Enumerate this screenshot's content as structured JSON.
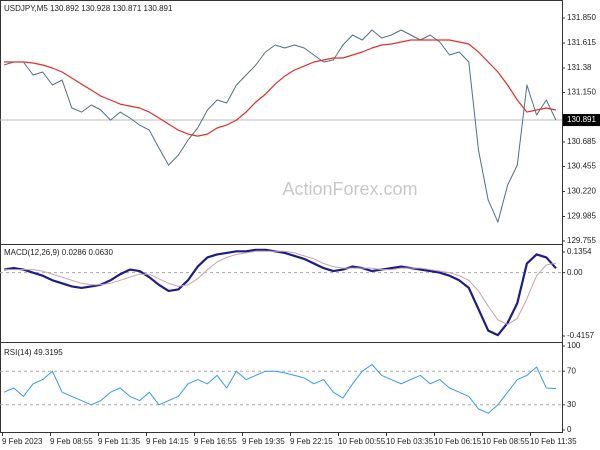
{
  "chart_data": [
    {
      "type": "line",
      "title": "USDJPY,M5  130.892 130.928 130.871 130.891",
      "watermark": "ActionForex.com",
      "ylim": [
        129.736,
        132.0
      ],
      "yticks": [
        {
          "value": 131.85,
          "label": "131.850"
        },
        131.615,
        131.38,
        {
          "value": 131.15,
          "label": "131.150"
        },
        130.685,
        130.455,
        {
          "value": 130.22,
          "label": "130.220"
        },
        129.985,
        129.755
      ],
      "last_price": 130.891,
      "series": [
        {
          "color": "#4f6f8c",
          "values": [
            131.408,
            131.436,
            131.436,
            131.314,
            131.342,
            131.22,
            131.267,
            131.004,
            130.966,
            131.032,
            130.985,
            130.891,
            130.966,
            130.91,
            130.844,
            130.797,
            130.628,
            130.468,
            130.562,
            130.703,
            130.816,
            130.985,
            131.079,
            131.051,
            131.22,
            131.314,
            131.408,
            131.53,
            131.596,
            131.568,
            131.596,
            131.568,
            131.502,
            131.436,
            131.455,
            131.596,
            131.69,
            131.643,
            131.737,
            131.662,
            131.69,
            131.737,
            131.69,
            131.643,
            131.69,
            131.624,
            131.502,
            131.53,
            131.436,
            130.609,
            130.139,
            129.932,
            130.28,
            130.468,
            131.22,
            130.938,
            131.079,
            130.891
          ]
        },
        {
          "color": "#e0302a",
          "values": [
            131.436,
            131.436,
            131.436,
            131.427,
            131.408,
            131.38,
            131.342,
            131.286,
            131.229,
            131.173,
            131.116,
            131.079,
            131.041,
            131.022,
            131.004,
            130.966,
            130.91,
            130.853,
            130.797,
            130.759,
            130.74,
            130.759,
            130.816,
            130.844,
            130.891,
            130.966,
            131.06,
            131.135,
            131.229,
            131.304,
            131.361,
            131.398,
            131.436,
            131.455,
            131.474,
            131.474,
            131.502,
            131.53,
            131.568,
            131.596,
            131.605,
            131.624,
            131.643,
            131.643,
            131.643,
            131.643,
            131.643,
            131.624,
            131.605,
            131.53,
            131.436,
            131.342,
            131.22,
            131.079,
            130.966,
            130.985,
            131.004,
            130.985
          ]
        }
      ]
    },
    {
      "type": "line",
      "title": "MACD(12,26,9) 0.0286 0.0630",
      "ylim": [
        -0.442,
        0.175
      ],
      "yticks": [
        0.1354,
        {
          "value": 0,
          "label": "0.00"
        },
        -0.4157
      ],
      "levels": [
        0
      ],
      "series": [
        {
          "color": "#1c1c8a",
          "values": [
            0.02,
            0.03,
            0.02,
            0.0,
            -0.02,
            -0.05,
            -0.07,
            -0.09,
            -0.1,
            -0.09,
            -0.08,
            -0.05,
            -0.01,
            0.02,
            0.01,
            -0.03,
            -0.08,
            -0.12,
            -0.11,
            -0.05,
            0.04,
            0.1,
            0.12,
            0.13,
            0.14,
            0.14,
            0.15,
            0.15,
            0.14,
            0.13,
            0.11,
            0.09,
            0.06,
            0.03,
            0.01,
            0.02,
            0.04,
            0.03,
            0.01,
            0.02,
            0.03,
            0.04,
            0.03,
            0.02,
            0.01,
            0.0,
            -0.02,
            -0.05,
            -0.1,
            -0.24,
            -0.38,
            -0.41,
            -0.33,
            -0.2,
            0.06,
            0.12,
            0.1,
            0.0286
          ]
        },
        {
          "color": "#c9a4a4",
          "values": [
            0.02,
            0.02,
            0.02,
            0.02,
            0.01,
            -0.01,
            -0.03,
            -0.05,
            -0.07,
            -0.08,
            -0.08,
            -0.07,
            -0.05,
            -0.03,
            -0.01,
            -0.01,
            -0.04,
            -0.07,
            -0.09,
            -0.08,
            -0.04,
            0.02,
            0.07,
            0.1,
            0.12,
            0.13,
            0.14,
            0.14,
            0.14,
            0.14,
            0.13,
            0.11,
            0.09,
            0.06,
            0.04,
            0.03,
            0.03,
            0.03,
            0.03,
            0.02,
            0.02,
            0.03,
            0.03,
            0.03,
            0.02,
            0.01,
            0.0,
            -0.02,
            -0.05,
            -0.12,
            -0.22,
            -0.31,
            -0.34,
            -0.3,
            -0.17,
            -0.02,
            0.05,
            0.063
          ]
        }
      ]
    },
    {
      "type": "line",
      "title": "RSI(14) 49.3195",
      "ylim": [
        0,
        100
      ],
      "yticks": [
        100,
        70,
        30,
        0
      ],
      "levels": [
        70,
        30
      ],
      "series": [
        {
          "color": "#3399ff",
          "values": [
            45,
            50,
            40,
            55,
            60,
            70,
            45,
            40,
            35,
            30,
            35,
            45,
            50,
            40,
            35,
            45,
            30,
            35,
            40,
            55,
            60,
            55,
            65,
            50,
            70,
            60,
            65,
            70,
            70,
            68,
            65,
            62,
            55,
            60,
            45,
            38,
            55,
            70,
            78,
            65,
            60,
            55,
            60,
            65,
            55,
            60,
            50,
            45,
            40,
            25,
            20,
            30,
            45,
            60,
            65,
            75,
            50,
            49.3195
          ]
        }
      ],
      "xticks": [
        "9 Feb 2023",
        "9 Feb 08:55",
        "9 Feb 11:35",
        "9 Feb 14:15",
        "9 Feb 16:55",
        "9 Feb 19:35",
        "9 Feb 22:15",
        "10 Feb 00:55",
        "10 Feb 03:35",
        "10 Feb 06:15",
        "10 Feb 08:55",
        "10 Feb 11:35"
      ]
    }
  ]
}
